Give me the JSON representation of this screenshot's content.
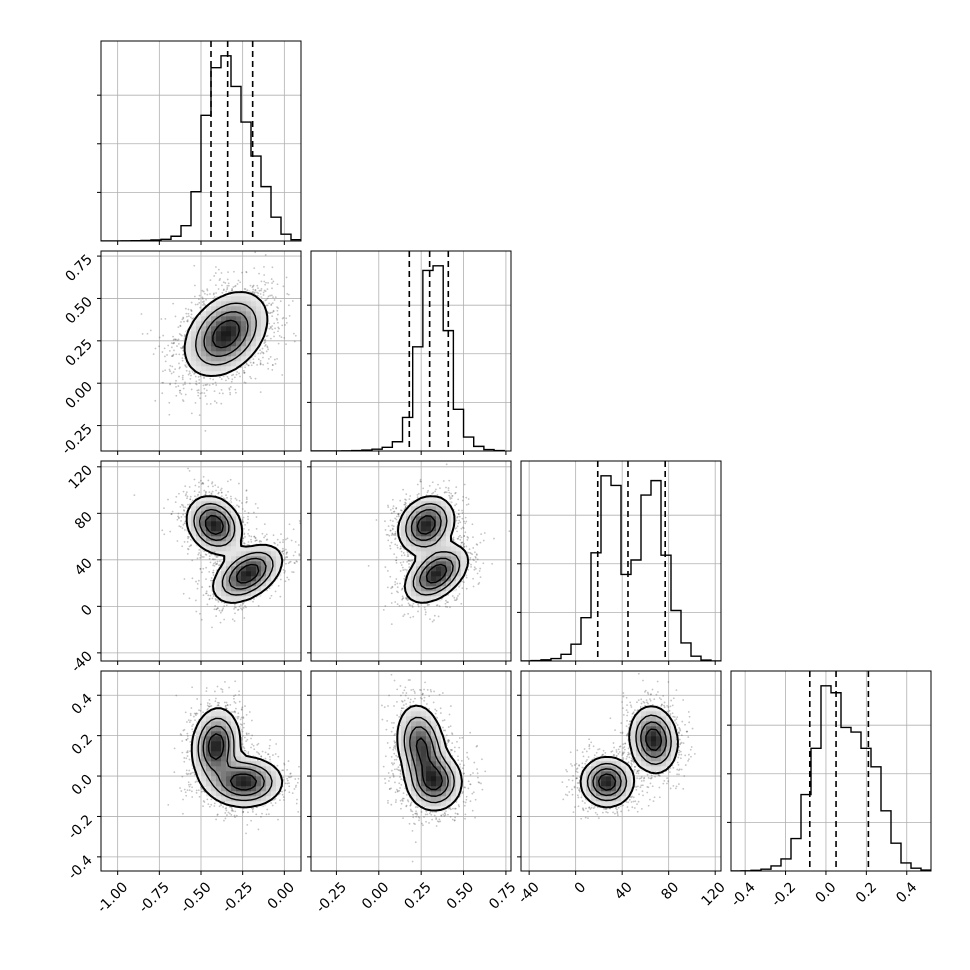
{
  "chart_data": {
    "type": "corner",
    "title": "",
    "parameters": [
      {
        "name": "",
        "range": [
          -1.1,
          0.1
        ],
        "ticks": [
          "-1.00",
          "-0.75",
          "-0.50",
          "-0.25",
          "0.00"
        ],
        "tick_values": [
          -1.0,
          -0.75,
          -0.5,
          -0.25,
          0.0
        ],
        "quantiles": [
          -0.44,
          -0.34,
          -0.19
        ]
      },
      {
        "name": "",
        "range": [
          -0.4,
          0.78
        ],
        "ticks": [
          "-0.25",
          "0.00",
          "0.25",
          "0.50",
          "0.75"
        ],
        "tick_values": [
          -0.25,
          0.0,
          0.25,
          0.5,
          0.75
        ],
        "quantiles": [
          0.18,
          0.3,
          0.41
        ]
      },
      {
        "name": "",
        "range": [
          -47,
          125
        ],
        "ticks": [
          "-40",
          "0",
          "40",
          "80",
          "120"
        ],
        "tick_values": [
          -40,
          0,
          40,
          80,
          120
        ],
        "quantiles": [
          19,
          45,
          77
        ]
      },
      {
        "name": "",
        "range": [
          -0.47,
          0.52
        ],
        "ticks": [
          "-0.4",
          "-0.2",
          "0.0",
          "0.2",
          "0.4"
        ],
        "tick_values": [
          -0.4,
          -0.2,
          0.0,
          0.2,
          0.4
        ],
        "quantiles": [
          -0.08,
          0.05,
          0.21
        ]
      }
    ],
    "histograms": [
      {
        "bin_edges": [
          -1.1,
          -1.04,
          -0.98,
          -0.92,
          -0.86,
          -0.8,
          -0.74,
          -0.68,
          -0.62,
          -0.56,
          -0.5,
          -0.44,
          -0.38,
          -0.32,
          -0.26,
          -0.2,
          -0.14,
          -0.08,
          -0.02,
          0.04,
          0.1
        ],
        "counts": [
          0,
          0,
          1,
          2,
          3,
          6,
          10,
          28,
          90,
          290,
          740,
          1020,
          1090,
          910,
          700,
          500,
          320,
          140,
          40,
          8
        ]
      },
      {
        "bin_edges": [
          -0.4,
          -0.34,
          -0.28,
          -0.22,
          -0.16,
          -0.1,
          -0.04,
          0.02,
          0.08,
          0.14,
          0.2,
          0.26,
          0.32,
          0.38,
          0.44,
          0.5,
          0.56,
          0.62,
          0.68,
          0.74
        ],
        "counts": [
          0,
          0,
          0,
          1,
          2,
          4,
          8,
          16,
          40,
          145,
          450,
          780,
          800,
          520,
          180,
          60,
          20,
          6,
          2
        ]
      },
      {
        "bin_edges": [
          -47,
          -38.4,
          -29.8,
          -21.2,
          -12.6,
          -4,
          4.6,
          13.2,
          21.8,
          30.4,
          39,
          47.6,
          56.2,
          64.8,
          73.4,
          82,
          90.6,
          99.2,
          107.8,
          116.4,
          125
        ],
        "counts": [
          0,
          2,
          5,
          10,
          28,
          70,
          180,
          450,
          770,
          730,
          360,
          420,
          690,
          750,
          440,
          210,
          75,
          20,
          4,
          0
        ]
      },
      {
        "bin_edges": [
          -0.47,
          -0.4205,
          -0.371,
          -0.3215,
          -0.272,
          -0.2225,
          -0.173,
          -0.1235,
          -0.074,
          -0.0245,
          0.025,
          0.0745,
          0.124,
          0.1735,
          0.223,
          0.2725,
          0.322,
          0.3715,
          0.421,
          0.4705,
          0.52
        ],
        "counts": [
          0,
          1,
          3,
          8,
          22,
          52,
          140,
          330,
          530,
          800,
          770,
          620,
          600,
          530,
          450,
          260,
          120,
          35,
          12,
          4
        ]
      }
    ],
    "pairs": [
      {
        "x_param": 0,
        "y_param": 1,
        "modes": [
          {
            "center": [
              -0.35,
              0.29
            ],
            "sd": [
              0.12,
              0.12
            ],
            "rho": 0.35,
            "weight": 1
          }
        ]
      },
      {
        "x_param": 0,
        "y_param": 2,
        "modes": [
          {
            "center": [
              -0.42,
              70
            ],
            "sd": [
              0.08,
              12
            ],
            "rho": -0.2,
            "weight": 0.5
          },
          {
            "center": [
              -0.22,
              28
            ],
            "sd": [
              0.1,
              12
            ],
            "rho": 0.45,
            "weight": 0.5
          }
        ]
      },
      {
        "x_param": 1,
        "y_param": 2,
        "modes": [
          {
            "center": [
              0.28,
              70
            ],
            "sd": [
              0.08,
              12
            ],
            "rho": 0.2,
            "weight": 0.5
          },
          {
            "center": [
              0.34,
              28
            ],
            "sd": [
              0.09,
              12
            ],
            "rho": 0.45,
            "weight": 0.5
          }
        ]
      },
      {
        "x_param": 0,
        "y_param": 3,
        "modes": [
          {
            "center": [
              -0.41,
              0.15
            ],
            "sd": [
              0.07,
              0.09
            ],
            "rho": 0.1,
            "weight": 0.5
          },
          {
            "center": [
              -0.24,
              -0.03
            ],
            "sd": [
              0.11,
              0.06
            ],
            "rho": 0.0,
            "weight": 0.5
          }
        ]
      },
      {
        "x_param": 1,
        "y_param": 3,
        "modes": [
          {
            "center": [
              0.25,
              0.15
            ],
            "sd": [
              0.07,
              0.1
            ],
            "rho": -0.2,
            "weight": 0.5
          },
          {
            "center": [
              0.33,
              -0.03
            ],
            "sd": [
              0.08,
              0.07
            ],
            "rho": 0.0,
            "weight": 0.5
          }
        ]
      },
      {
        "x_param": 2,
        "y_param": 3,
        "modes": [
          {
            "center": [
              27,
              -0.03
            ],
            "sd": [
              11,
              0.06
            ],
            "rho": 0.0,
            "weight": 0.5
          },
          {
            "center": [
              67,
              0.18
            ],
            "sd": [
              10,
              0.08
            ],
            "rho": -0.1,
            "weight": 0.5
          }
        ]
      }
    ],
    "contour_levels": [
      0.118,
      0.393,
      0.675,
      0.865
    ],
    "grid": true,
    "legend": "none"
  }
}
